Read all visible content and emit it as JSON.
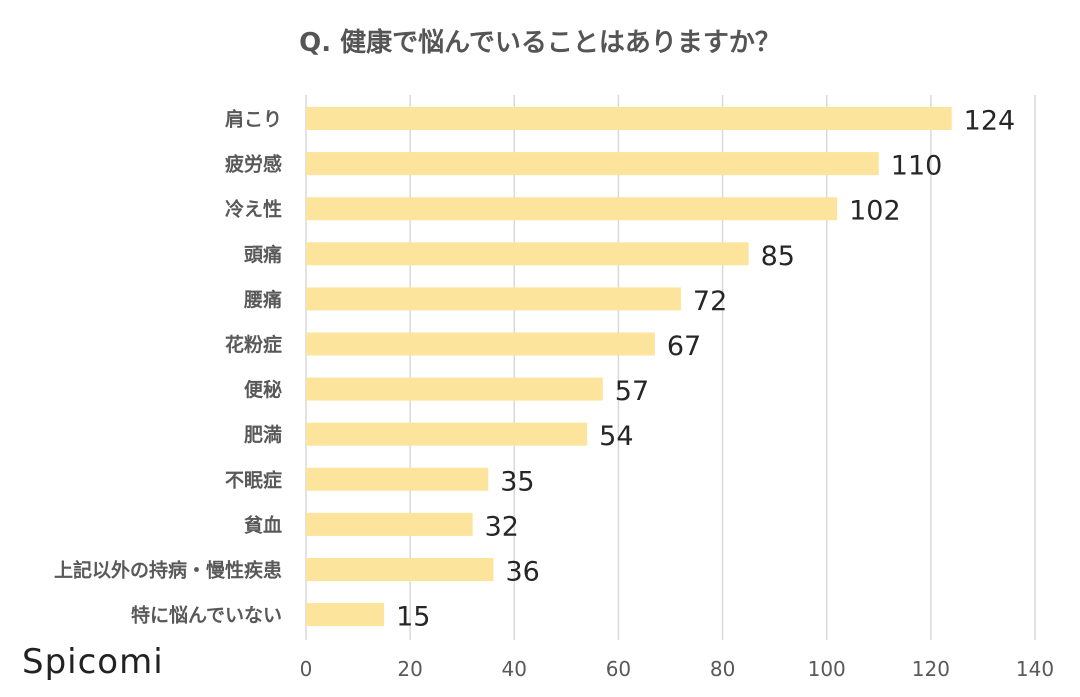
{
  "chart_data": {
    "type": "bar",
    "orientation": "horizontal",
    "title": "Q. 健康で悩んでいることはありますか？",
    "categories": [
      "肩こり",
      "疲労感",
      "冷え性",
      "頭痛",
      "腰痛",
      "花粉症",
      "便秘",
      "肥満",
      "不眠症",
      "貧血",
      "上記以外の持病・慢性疾患",
      "特に悩んでいない"
    ],
    "values": [
      124,
      110,
      102,
      85,
      72,
      67,
      57,
      54,
      35,
      32,
      36,
      15
    ],
    "xlim": [
      0,
      140
    ],
    "xticks": [
      0,
      20,
      40,
      60,
      80,
      100,
      120,
      140
    ],
    "xlabel": "",
    "ylabel": "",
    "grid": "vertical",
    "bar_color": "#FCE49C",
    "grid_color": "#D9D9D9",
    "label_color": "#595959",
    "value_label_color": "#262626"
  },
  "brand": {
    "text": "Spicomi"
  }
}
